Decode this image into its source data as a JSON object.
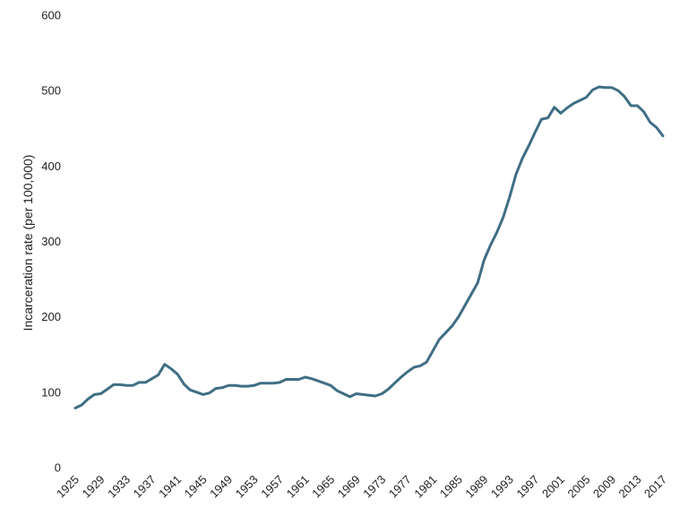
{
  "chart_data": {
    "type": "line",
    "title": "",
    "xlabel": "",
    "ylabel": "Incarceration rate (per 100,000)",
    "xlim": [
      1925,
      2017
    ],
    "ylim": [
      0,
      600
    ],
    "yticks": [
      0,
      100,
      200,
      300,
      400,
      500,
      600
    ],
    "xticks": [
      1925,
      1929,
      1933,
      1937,
      1941,
      1945,
      1949,
      1953,
      1957,
      1961,
      1965,
      1969,
      1973,
      1977,
      1981,
      1985,
      1989,
      1993,
      1997,
      2001,
      2005,
      2009,
      2013,
      2017
    ],
    "grid": false,
    "legend": "none",
    "series": [
      {
        "color": "#3f6e84",
        "x": [
          1925,
          1926,
          1927,
          1928,
          1929,
          1930,
          1931,
          1932,
          1933,
          1934,
          1935,
          1936,
          1937,
          1938,
          1939,
          1940,
          1941,
          1942,
          1943,
          1944,
          1945,
          1946,
          1947,
          1948,
          1949,
          1950,
          1951,
          1952,
          1953,
          1954,
          1955,
          1956,
          1957,
          1958,
          1959,
          1960,
          1961,
          1962,
          1963,
          1964,
          1965,
          1966,
          1967,
          1968,
          1969,
          1970,
          1971,
          1972,
          1973,
          1974,
          1975,
          1976,
          1977,
          1978,
          1979,
          1980,
          1981,
          1982,
          1983,
          1984,
          1985,
          1986,
          1987,
          1988,
          1989,
          1990,
          1991,
          1992,
          1993,
          1994,
          1995,
          1996,
          1997,
          1998,
          1999,
          2000,
          2001,
          2002,
          2003,
          2004,
          2005,
          2006,
          2007,
          2008,
          2009,
          2010,
          2011,
          2012,
          2013,
          2014,
          2015,
          2016,
          2017
        ],
        "values": [
          79,
          83,
          91,
          97,
          98,
          104,
          110,
          110,
          109,
          109,
          113,
          113,
          118,
          123,
          137,
          131,
          124,
          111,
          103,
          100,
          97,
          99,
          105,
          106,
          109,
          109,
          108,
          108,
          109,
          112,
          112,
          112,
          113,
          117,
          117,
          117,
          120,
          118,
          115,
          112,
          109,
          102,
          98,
          94,
          98,
          97,
          96,
          95,
          98,
          104,
          112,
          120,
          127,
          133,
          135,
          140,
          155,
          170,
          179,
          188,
          200,
          215,
          230,
          245,
          275,
          295,
          312,
          332,
          359,
          389,
          410,
          427,
          445,
          462,
          464,
          478,
          470,
          477,
          483,
          487,
          491,
          501,
          505,
          504,
          504,
          500,
          492,
          480,
          480,
          472,
          458,
          451,
          440
        ]
      }
    ]
  }
}
